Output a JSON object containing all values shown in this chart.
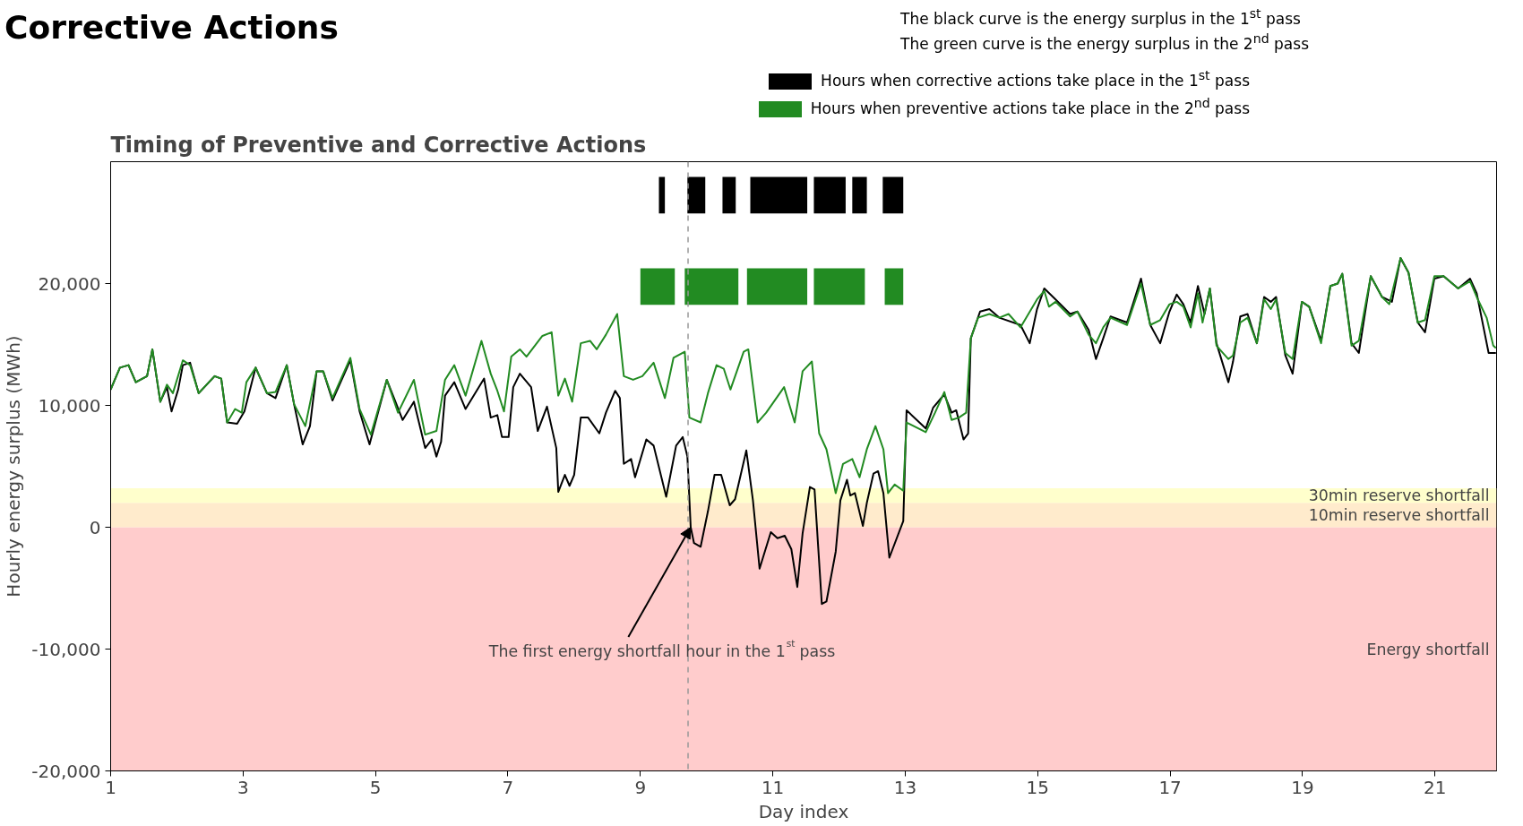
{
  "chart_data": {
    "type": "line",
    "title": "Timing of Preventive and Corrective Actions",
    "xlabel": "Day index",
    "ylabel": "Hourly energy surplus (MWh)",
    "xlim": [
      1,
      21.93
    ],
    "ylim": [
      -20000,
      30000
    ],
    "xticks": [
      1,
      3,
      5,
      7,
      9,
      11,
      13,
      15,
      17,
      19,
      21
    ],
    "yticks": [
      {
        "value": -20000,
        "label": "-20,000"
      },
      {
        "value": -10000,
        "label": "-10,000"
      },
      0,
      {
        "value": 10000,
        "label": "10,000"
      },
      {
        "value": 20000,
        "label": "20,000"
      }
    ],
    "grid": false,
    "legend": "top right",
    "marker": "none",
    "line_style": "solid",
    "series": [
      {
        "color": "#000000",
        "x": [
          1.0,
          1.14,
          1.27,
          1.38,
          1.55,
          1.63,
          1.75,
          1.85,
          1.92,
          2.02,
          2.09,
          2.2,
          2.33,
          2.57,
          2.67,
          2.76,
          2.91,
          3.02,
          3.19,
          3.36,
          3.49,
          3.66,
          3.77,
          3.9,
          4.01,
          4.11,
          4.21,
          4.35,
          4.62,
          4.76,
          4.91,
          5.17,
          5.41,
          5.58,
          5.75,
          5.85,
          5.92,
          5.99,
          6.05,
          6.19,
          6.36,
          6.64,
          6.74,
          6.84,
          6.91,
          7.01,
          7.08,
          7.18,
          7.35,
          7.45,
          7.59,
          7.73,
          7.76,
          7.86,
          7.93,
          8.0,
          8.1,
          8.21,
          8.38,
          8.48,
          8.62,
          8.69,
          8.75,
          8.86,
          8.92,
          9.09,
          9.2,
          9.39,
          9.54,
          9.64,
          9.71,
          9.76,
          9.81,
          9.91,
          10.02,
          10.12,
          10.22,
          10.35,
          10.43,
          10.6,
          10.7,
          10.8,
          10.97,
          11.07,
          11.18,
          11.28,
          11.37,
          11.45,
          11.56,
          11.63,
          11.74,
          11.81,
          11.95,
          12.02,
          12.12,
          12.17,
          12.24,
          12.36,
          12.42,
          12.52,
          12.59,
          12.67,
          12.76,
          12.97,
          13.02,
          13.31,
          13.42,
          13.59,
          13.7,
          13.77,
          13.88,
          13.95,
          13.99,
          14.13,
          14.27,
          14.42,
          14.74,
          14.88,
          14.99,
          15.1,
          15.27,
          15.49,
          15.6,
          15.77,
          15.88,
          15.99,
          16.1,
          16.35,
          16.56,
          16.7,
          16.85,
          16.99,
          17.1,
          17.2,
          17.31,
          17.42,
          17.52,
          17.6,
          17.7,
          17.88,
          17.95,
          18.06,
          18.17,
          18.31,
          18.42,
          18.52,
          18.6,
          18.74,
          18.85,
          18.99,
          19.1,
          19.28,
          19.42,
          19.53,
          19.6,
          19.74,
          19.85,
          20.03,
          20.2,
          20.35,
          20.48,
          20.6,
          20.74,
          20.85,
          20.99,
          21.13,
          21.35,
          21.53,
          21.63,
          21.81,
          21.92
        ],
        "values": [
          11300,
          13100,
          13300,
          11900,
          12400,
          14600,
          10300,
          11500,
          9500,
          11300,
          13300,
          13500,
          11000,
          12400,
          12200,
          8600,
          8500,
          9500,
          13100,
          11000,
          10600,
          13300,
          10100,
          6800,
          8300,
          12800,
          12800,
          10400,
          13700,
          9500,
          6800,
          12100,
          8800,
          10300,
          6500,
          7200,
          5800,
          7000,
          10800,
          11900,
          9700,
          12200,
          9000,
          9200,
          7400,
          7400,
          11500,
          12600,
          11500,
          7900,
          9900,
          6500,
          2900,
          4300,
          3400,
          4300,
          9000,
          9000,
          7700,
          9400,
          11200,
          10600,
          5200,
          5600,
          4100,
          7200,
          6700,
          2500,
          6700,
          7400,
          5800,
          0,
          -1300,
          -1600,
          1300,
          4300,
          4300,
          1800,
          2300,
          6300,
          2200,
          -3400,
          -400,
          -900,
          -700,
          -1800,
          -4900,
          -500,
          3300,
          3100,
          -6300,
          -6100,
          -2000,
          2200,
          3900,
          2600,
          2800,
          100,
          2000,
          4400,
          4600,
          2800,
          -2500,
          500,
          9600,
          8100,
          9800,
          10900,
          9400,
          9600,
          7200,
          7700,
          15500,
          17700,
          17900,
          17200,
          16600,
          15100,
          17900,
          19600,
          18700,
          17500,
          17700,
          16200,
          13800,
          15500,
          17300,
          16800,
          20400,
          16600,
          15100,
          17700,
          19100,
          18300,
          16800,
          19800,
          17500,
          19600,
          15100,
          11900,
          13600,
          17300,
          17500,
          15100,
          18900,
          18500,
          18900,
          14100,
          12600,
          18500,
          18100,
          15300,
          19800,
          20000,
          20800,
          15100,
          14300,
          20600,
          18900,
          18500,
          22100,
          20900,
          16800,
          16000,
          20400,
          20600,
          19600,
          20400,
          19200,
          14300,
          14300
        ]
      },
      {
        "color": "#228b22",
        "x": [
          1.0,
          1.14,
          1.27,
          1.38,
          1.55,
          1.63,
          1.75,
          1.85,
          1.94,
          2.09,
          2.2,
          2.33,
          2.57,
          2.67,
          2.76,
          2.88,
          2.98,
          3.05,
          3.19,
          3.36,
          3.49,
          3.66,
          3.77,
          3.94,
          4.11,
          4.21,
          4.35,
          4.62,
          4.76,
          4.93,
          5.17,
          5.34,
          5.58,
          5.75,
          5.92,
          6.05,
          6.19,
          6.36,
          6.6,
          6.74,
          6.84,
          6.94,
          7.05,
          7.18,
          7.28,
          7.52,
          7.66,
          7.76,
          7.86,
          7.97,
          8.1,
          8.24,
          8.34,
          8.48,
          8.65,
          8.75,
          8.89,
          9.03,
          9.2,
          9.37,
          9.5,
          9.67,
          9.74,
          9.91,
          10.02,
          10.15,
          10.26,
          10.36,
          10.56,
          10.63,
          10.77,
          10.9,
          11.17,
          11.33,
          11.45,
          11.59,
          11.7,
          11.81,
          11.95,
          12.06,
          12.2,
          12.31,
          12.42,
          12.55,
          12.67,
          12.74,
          12.84,
          12.97,
          13.02,
          13.31,
          13.45,
          13.59,
          13.7,
          13.81,
          13.92,
          13.99,
          14.1,
          14.27,
          14.42,
          14.56,
          14.74,
          14.99,
          15.1,
          15.17,
          15.27,
          15.49,
          15.6,
          15.77,
          15.88,
          15.99,
          16.1,
          16.35,
          16.56,
          16.7,
          16.85,
          16.99,
          17.1,
          17.2,
          17.31,
          17.42,
          17.49,
          17.6,
          17.7,
          17.88,
          17.95,
          18.06,
          18.17,
          18.31,
          18.42,
          18.52,
          18.6,
          18.74,
          18.85,
          18.99,
          19.1,
          19.28,
          19.42,
          19.53,
          19.6,
          19.74,
          19.85,
          20.03,
          20.2,
          20.31,
          20.48,
          20.6,
          20.74,
          20.85,
          20.99,
          21.13,
          21.35,
          21.53,
          21.63,
          21.78,
          21.88,
          21.92
        ],
        "values": [
          11300,
          13100,
          13300,
          11900,
          12400,
          14600,
          10300,
          11700,
          11000,
          13700,
          13300,
          11000,
          12400,
          12200,
          8600,
          9700,
          9400,
          11900,
          13100,
          11000,
          11100,
          13300,
          10100,
          8300,
          12800,
          12800,
          10600,
          13900,
          9700,
          7600,
          12100,
          9400,
          12100,
          7600,
          7900,
          12100,
          13300,
          10800,
          15300,
          12600,
          11200,
          9500,
          14000,
          14600,
          14000,
          15700,
          16000,
          10800,
          12200,
          10300,
          15100,
          15300,
          14600,
          15800,
          17500,
          12400,
          12100,
          12400,
          13500,
          10600,
          13900,
          14400,
          9000,
          8600,
          11000,
          13300,
          13000,
          11300,
          14400,
          14600,
          8600,
          9400,
          11500,
          8600,
          12800,
          13600,
          7700,
          6400,
          2800,
          5200,
          5600,
          4100,
          6400,
          8300,
          6400,
          2800,
          3500,
          3000,
          8600,
          7800,
          9400,
          11100,
          8800,
          9000,
          9400,
          15500,
          17200,
          17500,
          17200,
          17500,
          16400,
          18700,
          19400,
          18100,
          18500,
          17300,
          17700,
          15800,
          15100,
          16400,
          17200,
          16600,
          20000,
          16600,
          17000,
          18300,
          18500,
          18100,
          16400,
          19200,
          16800,
          19600,
          14900,
          13800,
          14100,
          16800,
          17200,
          15100,
          18700,
          17900,
          18700,
          14300,
          13800,
          18500,
          18100,
          15100,
          19800,
          20000,
          20800,
          14900,
          15300,
          20600,
          18900,
          18300,
          22100,
          20900,
          16800,
          17000,
          20600,
          20600,
          19600,
          20200,
          18900,
          17200,
          14900,
          14700
        ]
      }
    ],
    "bands": [
      {
        "axis": "y",
        "from": -20000,
        "to": 0,
        "label": "Energy shortfall",
        "color": "#ffcccc"
      },
      {
        "axis": "y",
        "from": 0,
        "to": 2000,
        "label": "10min reserve shortfall",
        "color": "#ffebcc"
      },
      {
        "axis": "y",
        "from": 2000,
        "to": 3200,
        "label": "30min reserve shortfall",
        "color": "#ffffcc"
      },
      {
        "axis": "x",
        "from": 9.28,
        "to": 9.37,
        "label": "Hours when corrective actions take place in the 1$^{st}$ pass",
        "color": "#000000"
      },
      {
        "axis": "x",
        "from": 9.71,
        "to": 9.98,
        "label": null,
        "color": "#000000"
      },
      {
        "axis": "x",
        "from": 10.24,
        "to": 10.44,
        "label": null,
        "color": "#000000"
      },
      {
        "axis": "x",
        "from": 10.66,
        "to": 11.52,
        "label": null,
        "color": "#000000"
      },
      {
        "axis": "x",
        "from": 11.62,
        "to": 12.1,
        "label": null,
        "color": "#000000"
      },
      {
        "axis": "x",
        "from": 12.2,
        "to": 12.42,
        "label": null,
        "color": "#000000"
      },
      {
        "axis": "x",
        "from": 12.66,
        "to": 12.97,
        "label": null,
        "color": "#000000"
      },
      {
        "axis": "x",
        "from": 9.0,
        "to": 9.52,
        "label": "Hours when preventive actions take place in the 2$^{nd}$ pass",
        "color": "#228b22"
      },
      {
        "axis": "x",
        "from": 9.67,
        "to": 10.48,
        "label": null,
        "color": "#228b22"
      },
      {
        "axis": "x",
        "from": 10.61,
        "to": 11.52,
        "label": null,
        "color": "#228b22"
      },
      {
        "axis": "x",
        "from": 11.62,
        "to": 12.39,
        "label": null,
        "color": "#228b22"
      },
      {
        "axis": "x",
        "from": 12.69,
        "to": 12.97,
        "label": null,
        "color": "#228b22"
      }
    ],
    "ref_lines": [
      {
        "axis": "x",
        "value": 9.72,
        "label": null,
        "color": "#999999",
        "line_style": "dashed"
      }
    ],
    "annotations": [
      "Corrective Actions",
      "The black curve is the energy surplus in the 1$^{st}$ pass",
      "The green curve is the energy surplus in the 2$^{nd}$ pass",
      {
        "text": "The first energy shortfall hour in the 1$^{st}$ pass",
        "x": 9.76,
        "y": 0
      }
    ]
  }
}
